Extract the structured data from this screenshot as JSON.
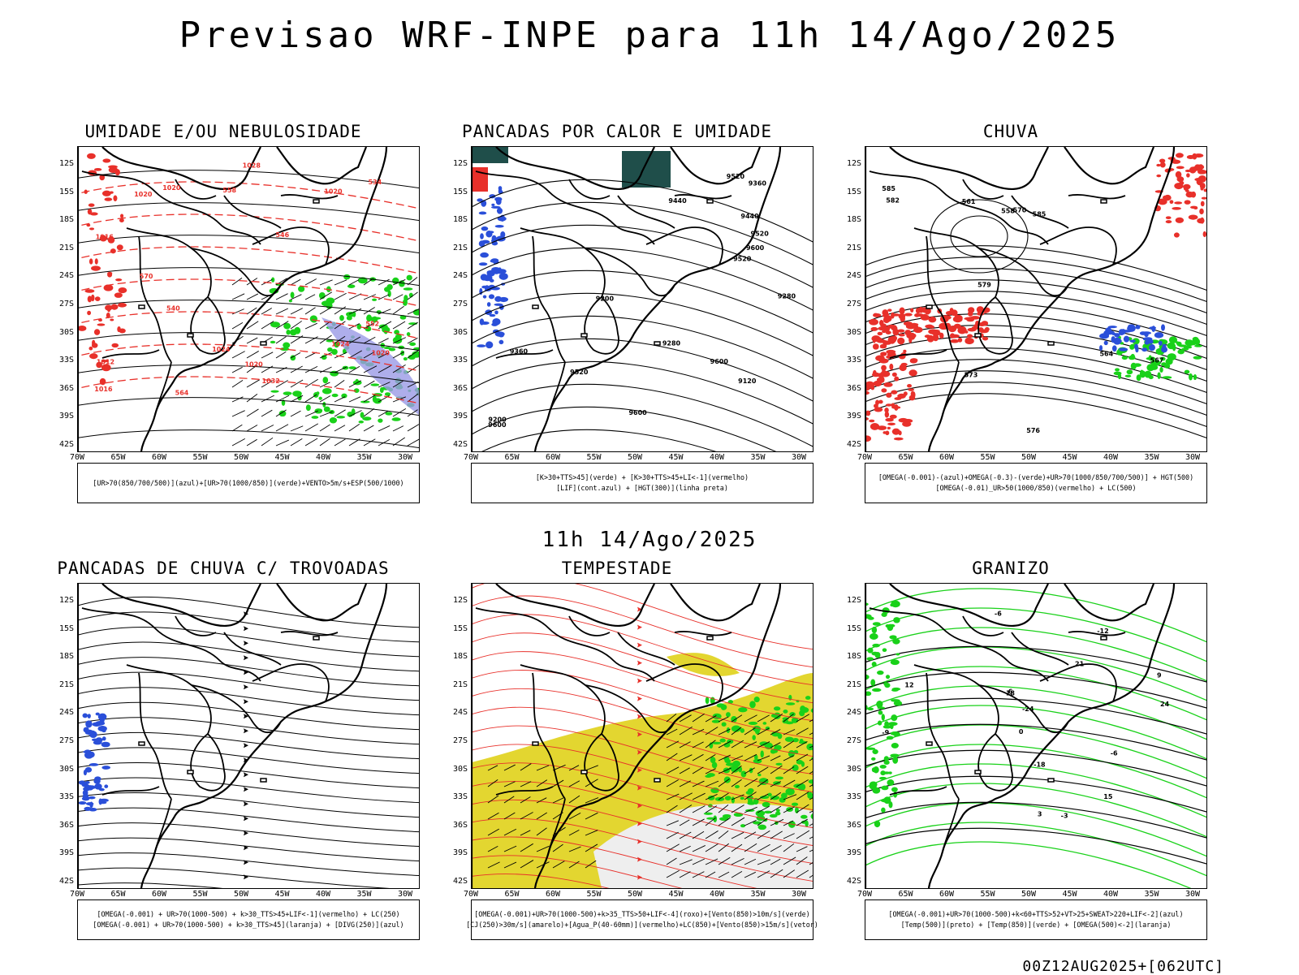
{
  "main_title": "Previsao WRF-INPE  para 11h 14/Ago/2025",
  "mid_title": "11h 14/Ago/2025",
  "footer": "00Z12AUG2025+[062UTC]",
  "lat_labels": [
    "12S",
    "15S",
    "18S",
    "21S",
    "24S",
    "27S",
    "30S",
    "33S",
    "36S",
    "39S",
    "42S"
  ],
  "lon_labels": [
    "70W",
    "65W",
    "60W",
    "55W",
    "50W",
    "45W",
    "40W",
    "35W",
    "30W"
  ],
  "colors": {
    "red": "#e8302a",
    "green": "#19d119",
    "blue": "#2a4fd9",
    "yellow": "#e3d630",
    "dark-teal": "#1f4e4a",
    "lavender": "#9a9ae6"
  },
  "panels": [
    {
      "title": "UMIDADE E/OU NEBULOSIDADE",
      "legend": [
        "[UR>70(850/700/500)](azul)+[UR>70(1000/850)](verde)+VENTO>5m/s+ESP(500/1000)"
      ],
      "contour_labels": [
        "1016",
        "1016",
        "1020",
        "1020",
        "1020",
        "1020",
        "1020",
        "1024",
        "1024",
        "1028",
        "1032",
        "1012",
        "570",
        "564",
        "558",
        "552",
        "546",
        "540",
        "534"
      ]
    },
    {
      "title": "PANCADAS POR CALOR E UMIDADE",
      "legend": [
        "[K>30+TTS>45](verde) + [K>30+TTS>45+LI<-1](vermelho)",
        "[LIF](cont.azul) + [HGT(300)](linha preta)"
      ],
      "contour_labels": [
        "9600",
        "9600",
        "9600",
        "9520",
        "9520",
        "9520",
        "9440",
        "9440",
        "9360",
        "9360",
        "9280",
        "9280",
        "9200",
        "9200",
        "9120",
        "9520",
        "9600"
      ]
    },
    {
      "title": "CHUVA",
      "legend": [
        "[OMEGA(-0.001)-(azul)+OMEGA(-0.3)-(verde)+UR>70(1000/850/700/500)] + HGT(500)",
        "[OMEGA(-0.01)_UR>50(1000/850)(vermelho) + LC(500)"
      ],
      "contour_labels": [
        "585",
        "585",
        "582",
        "579",
        "576",
        "573",
        "570",
        "567",
        "564",
        "561",
        "558"
      ]
    },
    {
      "title": "PANCADAS DE CHUVA C/ TROVOADAS",
      "legend": [
        "[OMEGA(-0.001) + UR>70(1000-500) + k>30_TTS>45+LIF<-1](vermelho) + LC(250)",
        "[OMEGA(-0.001) + UR>70(1000-500) + k>30_TTS>45](laranja) + [DIVG(250)](azul)"
      ],
      "contour_labels": []
    },
    {
      "title": "TEMPESTADE",
      "legend": [
        "[OMEGA(-0.001)+UR>70(1000-500)+k>35_TTS>50+LIF<-4](roxo)+[Vento(850)>10m/s](verde)",
        "[CJ(250)>30m/s](amarelo)+[Agua_P(40-60mm)](vermelho)+LC(850)+[Vento(850)>15m/s](vetor)"
      ],
      "contour_labels": []
    },
    {
      "title": "GRANIZO",
      "legend": [
        "[OMEGA(-0.001)+UR>70(1000-500)+k<60+TTS>52+VT>25+SWEAT>220+LIF<-2](azul)",
        "[Temp(500)](preto) + [Temp(850)](verde) + [OMEGA(500)<-2](laranja)"
      ],
      "contour_labels": [
        "-9",
        "-6",
        "-3",
        "0",
        "3",
        "6",
        "9",
        "12",
        "15",
        "18",
        "21",
        "24",
        "-6",
        "-12",
        "-18",
        "-24"
      ]
    }
  ]
}
